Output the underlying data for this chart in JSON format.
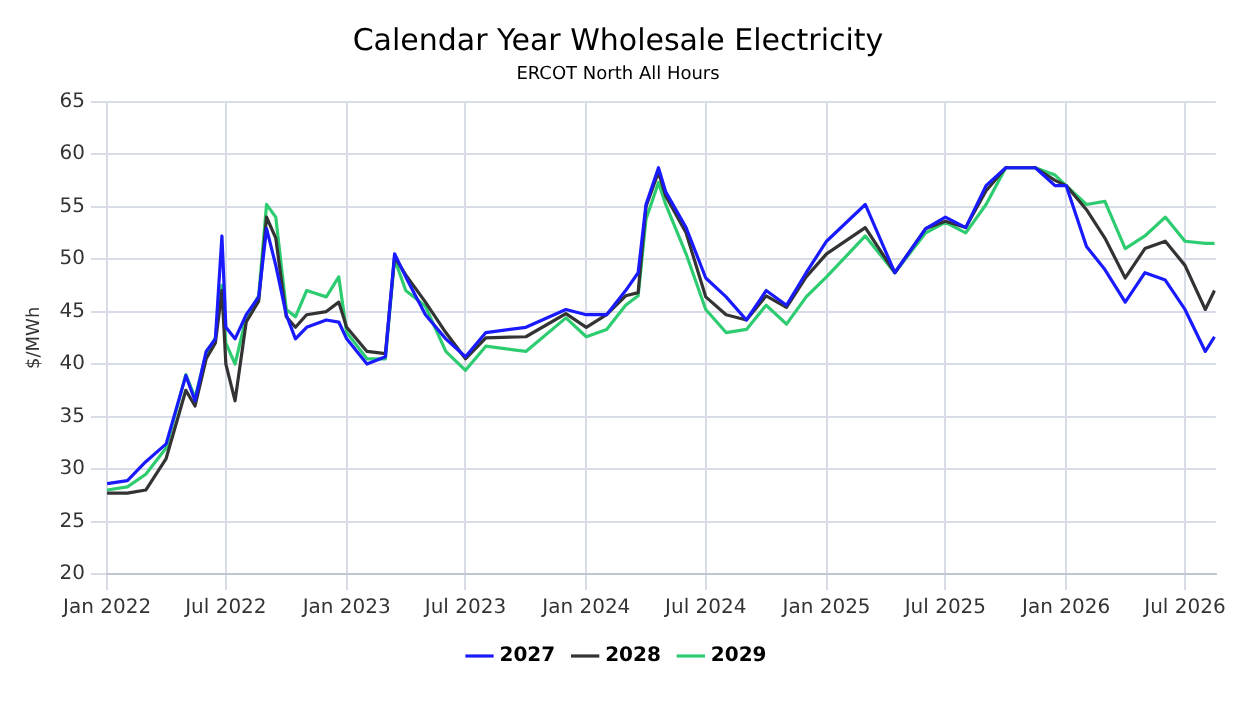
{
  "chart_data": {
    "type": "line",
    "title": "Calendar Year Wholesale Electricity",
    "subtitle": "ERCOT North All Hours",
    "ylabel": "$/MWh",
    "x": [
      "2022-01-01",
      "2022-02-01",
      "2022-03-01",
      "2022-04-01",
      "2022-05-01",
      "2022-05-15",
      "2022-06-01",
      "2022-06-15",
      "2022-06-25",
      "2022-07-01",
      "2022-07-15",
      "2022-08-01",
      "2022-08-20",
      "2022-09-01",
      "2022-09-15",
      "2022-10-01",
      "2022-10-15",
      "2022-11-01",
      "2022-12-01",
      "2022-12-20",
      "2023-01-01",
      "2023-02-01",
      "2023-03-01",
      "2023-03-15",
      "2023-04-01",
      "2023-05-01",
      "2023-06-01",
      "2023-07-01",
      "2023-08-01",
      "2023-10-01",
      "2023-12-01",
      "2024-01-01",
      "2024-02-01",
      "2024-03-01",
      "2024-03-20",
      "2024-04-01",
      "2024-04-20",
      "2024-05-01",
      "2024-06-01",
      "2024-07-01",
      "2024-08-01",
      "2024-09-01",
      "2024-10-01",
      "2024-11-01",
      "2024-12-01",
      "2025-01-01",
      "2025-03-01",
      "2025-04-15",
      "2025-06-01",
      "2025-07-01",
      "2025-08-01",
      "2025-09-01",
      "2025-10-01",
      "2025-11-15",
      "2025-12-15",
      "2026-01-01",
      "2026-02-01",
      "2026-03-01",
      "2026-04-01",
      "2026-05-01",
      "2026-06-01",
      "2026-07-01",
      "2026-08-01",
      "2026-08-15"
    ],
    "series": [
      {
        "name": "2027",
        "color": "#1a1aff",
        "values": [
          28.6,
          28.9,
          30.7,
          32.4,
          38.9,
          36.5,
          41.2,
          42.4,
          52.2,
          43.5,
          42.4,
          44.7,
          46.4,
          52.9,
          49.4,
          44.7,
          42.4,
          43.5,
          44.2,
          44.0,
          42.4,
          40.0,
          40.7,
          50.5,
          48.3,
          44.7,
          42.4,
          40.7,
          43.0,
          43.5,
          45.2,
          44.7,
          44.7,
          47.0,
          48.7,
          55.2,
          58.7,
          56.4,
          53.0,
          48.2,
          46.4,
          44.2,
          47.0,
          45.6,
          48.7,
          51.7,
          55.2,
          48.7,
          52.9,
          54.0,
          53.0,
          57.0,
          58.7,
          58.7,
          57.0,
          57.0,
          51.2,
          49.0,
          45.9,
          48.7,
          48.0,
          45.2,
          41.2,
          42.6
        ]
      },
      {
        "name": "2028",
        "color": "#333333",
        "values": [
          27.7,
          27.7,
          28.0,
          31.0,
          37.5,
          36.0,
          40.5,
          42.0,
          47.0,
          40.0,
          36.5,
          44.0,
          46.0,
          54.0,
          52.0,
          44.5,
          43.5,
          44.7,
          45.0,
          45.9,
          43.5,
          41.2,
          41.0,
          50.2,
          48.5,
          45.9,
          43.0,
          40.5,
          42.5,
          42.6,
          44.8,
          43.5,
          44.7,
          46.5,
          46.8,
          55.0,
          58.3,
          56.0,
          52.5,
          46.4,
          44.7,
          44.2,
          46.5,
          45.4,
          48.3,
          50.5,
          53.0,
          48.7,
          52.9,
          53.6,
          53.0,
          56.5,
          58.7,
          58.7,
          57.5,
          57.0,
          54.7,
          52.0,
          48.2,
          51.0,
          51.7,
          49.4,
          45.2,
          47.0
        ]
      },
      {
        "name": "2029",
        "color": "#2ecc71",
        "values": [
          28.0,
          28.3,
          29.5,
          32.0,
          39.0,
          36.8,
          41.0,
          42.5,
          47.5,
          42.0,
          40.0,
          44.5,
          46.5,
          55.2,
          54.0,
          45.2,
          44.5,
          47.0,
          46.4,
          48.3,
          43.0,
          40.5,
          40.5,
          50.0,
          47.0,
          45.5,
          41.2,
          39.4,
          41.7,
          41.2,
          44.4,
          42.6,
          43.3,
          45.6,
          46.5,
          53.8,
          57.3,
          55.2,
          50.5,
          45.2,
          43.0,
          43.3,
          45.6,
          43.8,
          46.4,
          48.3,
          52.2,
          48.7,
          52.5,
          53.5,
          52.5,
          55.2,
          58.7,
          58.7,
          58.0,
          57.0,
          55.2,
          55.5,
          51.0,
          52.2,
          54.0,
          51.7,
          51.5,
          51.5
        ]
      }
    ],
    "xlim": [
      "2022-01-01",
      "2026-08-17"
    ],
    "xticks": [
      {
        "value": "2022-01-01",
        "label": "Jan 2022"
      },
      {
        "value": "2022-07-01",
        "label": "Jul 2022"
      },
      {
        "value": "2023-01-01",
        "label": "Jan 2023"
      },
      {
        "value": "2023-07-01",
        "label": "Jul 2023"
      },
      {
        "value": "2024-01-01",
        "label": "Jan 2024"
      },
      {
        "value": "2024-07-01",
        "label": "Jul 2024"
      },
      {
        "value": "2025-01-01",
        "label": "Jan 2025"
      },
      {
        "value": "2025-07-01",
        "label": "Jul 2025"
      },
      {
        "value": "2026-01-01",
        "label": "Jan 2026"
      },
      {
        "value": "2026-07-01",
        "label": "Jul 2026"
      }
    ],
    "ylim": [
      20,
      65
    ],
    "yticks": [
      20,
      25,
      30,
      35,
      40,
      45,
      50,
      55,
      60,
      65
    ],
    "grid": true,
    "legend": "bottom",
    "marker": "none",
    "line_style": "solid"
  }
}
